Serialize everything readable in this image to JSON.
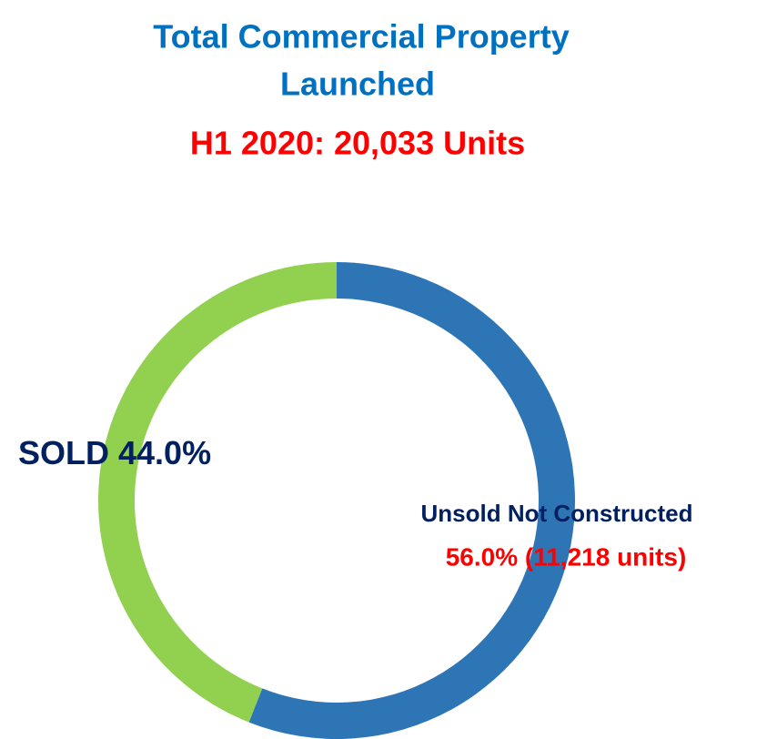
{
  "chart_data": {
    "type": "pie",
    "donut": true,
    "title": [
      "Total Commercial Property",
      "Launched"
    ],
    "subtitle": "H1 2020: 20,033 Units",
    "categories": [
      "SOLD",
      "Unsold Not Constructed"
    ],
    "values": [
      44.0,
      56.0
    ],
    "value_labels": [
      "44.0%",
      "56.0% (11,218 units)"
    ],
    "colors": [
      "#92d050",
      "#2e75b6"
    ]
  }
}
